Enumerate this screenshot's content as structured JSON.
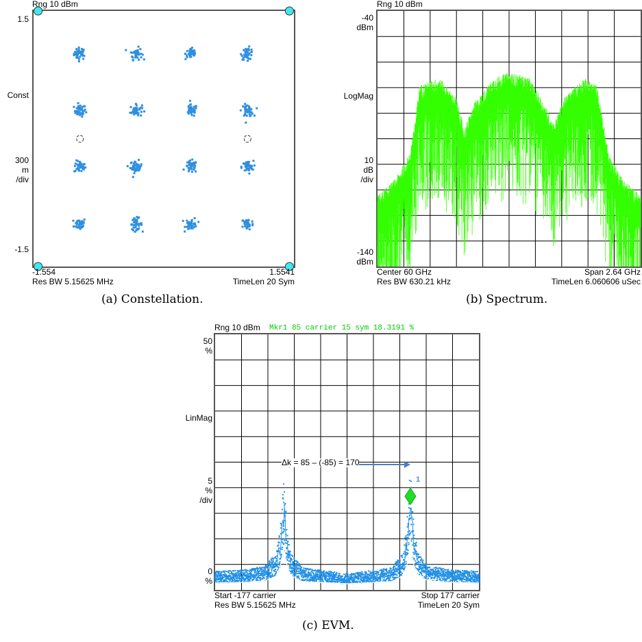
{
  "colors": {
    "constellation_points": "#2f8fe0",
    "reference_points": "#40e8f0",
    "spectrum_trace": "#33ff00",
    "evm_trace": "#1f8fe6",
    "evm_mean": "#ffffff",
    "marker": "#22dd22",
    "grid": "#000000",
    "annotation_arrow": "#4a7fc1",
    "marker_header": "#00cc00"
  },
  "constellation": {
    "header": "Rng 10 dBm",
    "y_top": "1.5",
    "y_mid_name": "Const",
    "scale_1": "300",
    "scale_2": "m",
    "scale_3": "/div",
    "y_bottom": "-1.5",
    "x_left": "-1.554",
    "x_right": "1.5541",
    "footer_left": "Res BW 5.15625 MHz",
    "footer_right": "TimeLen 20  Sym",
    "caption": "(a) Constellation."
  },
  "spectrum": {
    "header": "Rng 10 dBm",
    "y_top_1": "-40",
    "y_top_2": "dBm",
    "y_mid_name": "LogMag",
    "scale_1": "10",
    "scale_2": "dB",
    "scale_3": "/div",
    "y_bottom_1": "-140",
    "y_bottom_2": "dBm",
    "footer_left_1": "Center 60 GHz",
    "footer_right_1": "Span 2.64 GHz",
    "footer_left_2": "Res BW 630.21 kHz",
    "footer_right_2": "TimeLen 6.060606 uSec",
    "caption": "(b) Spectrum."
  },
  "evm": {
    "header": "Rng 10 dBm",
    "marker_header": "Mkr1  85 carrier  15 sym      18.3191  %",
    "y_top_1": "50",
    "y_top_2": "%",
    "y_mid_name": "LinMag",
    "scale_1": "5",
    "scale_2": "%",
    "scale_3": "/div",
    "y_bottom_1": "0",
    "y_bottom_2": "%",
    "annotation": "Δk = 85 – (-85) = 170",
    "marker_label": "1",
    "footer_left_1": "Start -177  carrier",
    "footer_right_1": "Stop 177  carrier",
    "footer_left_2": "Res BW 5.15625 MHz",
    "footer_right_2": "TimeLen 20  Sym",
    "caption": "(c) EVM."
  },
  "chart_data": [
    {
      "type": "scatter",
      "name": "constellation",
      "xlim": [
        -1.554,
        1.5541
      ],
      "ylim": [
        -1.5,
        1.5
      ],
      "grid": false,
      "clusters_x": [
        -1.0,
        -0.33,
        0.33,
        1.0
      ],
      "clusters_y": [
        1.0,
        0.33,
        -0.33,
        -1.0
      ],
      "reference_points": [
        [
          -1.5,
          1.5
        ],
        [
          1.5,
          1.5
        ],
        [
          -1.5,
          -1.5
        ],
        [
          1.5,
          -1.5
        ]
      ],
      "pilot_points": [
        [
          -1.0,
          0.0
        ],
        [
          1.0,
          0.0
        ]
      ],
      "symbols_per_cluster": 40
    },
    {
      "type": "line",
      "name": "spectrum",
      "x_unit": "GHz",
      "xlim": [
        58.68,
        61.32
      ],
      "ylim": [
        -140,
        -40
      ],
      "grid": true,
      "x": [
        58.68,
        58.85,
        59.0,
        59.06,
        59.1,
        59.3,
        59.47,
        59.55,
        59.65,
        59.85,
        60.0,
        60.2,
        60.35,
        60.45,
        60.55,
        60.75,
        60.88,
        60.94,
        61.0,
        61.15,
        61.32
      ],
      "y": [
        -118,
        -112,
        -102,
        -88,
        -75,
        -72,
        -80,
        -92,
        -82,
        -72,
        -70,
        -72,
        -82,
        -90,
        -80,
        -72,
        -75,
        -88,
        -102,
        -112,
        -118
      ]
    },
    {
      "type": "line",
      "name": "evm",
      "x_unit": "carrier",
      "xlim": [
        -177,
        177
      ],
      "ylim": [
        0,
        50
      ],
      "grid": true,
      "x": [
        -177,
        -140,
        -110,
        -95,
        -90,
        -87,
        -85,
        -83,
        -80,
        -75,
        -60,
        0,
        60,
        75,
        80,
        83,
        85,
        87,
        90,
        95,
        110,
        140,
        177
      ],
      "y": [
        2.5,
        2.7,
        3.2,
        5.0,
        8.0,
        12.0,
        15.5,
        12.0,
        8.0,
        5.0,
        3.0,
        2.2,
        3.0,
        5.0,
        8.5,
        13.0,
        18.3,
        13.0,
        8.5,
        5.0,
        3.2,
        2.7,
        2.5
      ],
      "marker": {
        "x": 85,
        "y": 18.3191,
        "unit": "%",
        "symbol": 15
      },
      "delta_k": 170
    }
  ]
}
